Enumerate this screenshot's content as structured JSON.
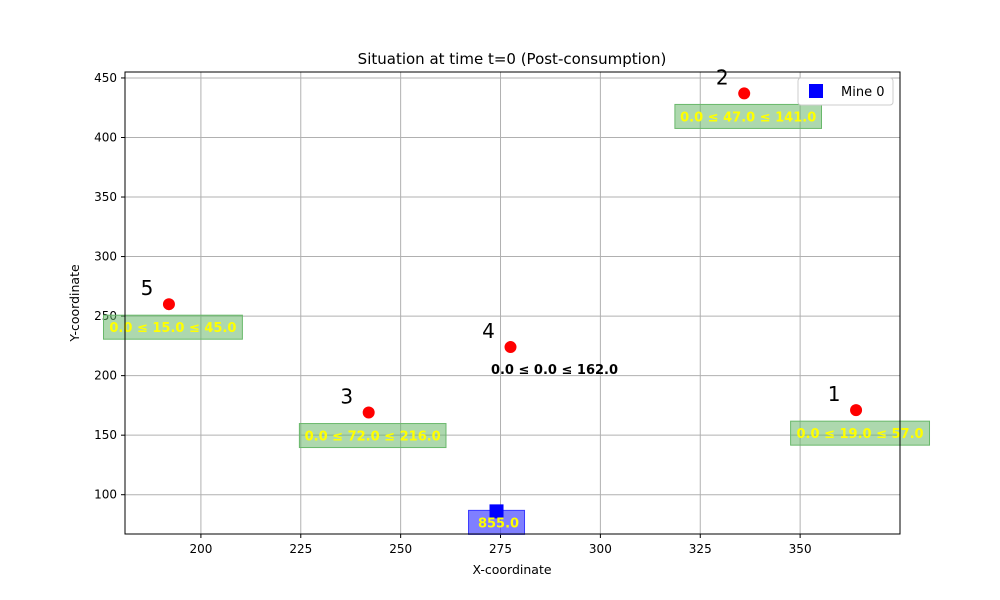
{
  "chart_data": {
    "type": "scatter",
    "title": "Situation at time t=0 (Post-consumption)",
    "xlabel": "X-coordinate",
    "ylabel": "Y-coordinate",
    "xlim": [
      181,
      375
    ],
    "ylim": [
      67,
      455
    ],
    "xticks": [
      200,
      225,
      250,
      275,
      300,
      325,
      350
    ],
    "yticks": [
      100,
      150,
      200,
      250,
      300,
      350,
      400,
      450
    ],
    "grid": true,
    "legend": {
      "position": "top-right",
      "entries": [
        {
          "label": "Mine 0",
          "marker": "square",
          "color": "#0000ff"
        }
      ]
    },
    "customers": [
      {
        "id": "1",
        "x": 364,
        "y": 171,
        "label": "0.0 ≤ 19.0 ≤ 57.0",
        "boxed": true
      },
      {
        "id": "2",
        "x": 336,
        "y": 437,
        "label": "0.0 ≤ 47.0 ≤ 141.0",
        "boxed": true
      },
      {
        "id": "3",
        "x": 242,
        "y": 169,
        "label": "0.0 ≤ 72.0 ≤ 216.0",
        "boxed": true
      },
      {
        "id": "4",
        "x": 277.5,
        "y": 224,
        "label": "0.0 ≤ 0.0 ≤ 162.0",
        "boxed": false
      },
      {
        "id": "5",
        "x": 192,
        "y": 260,
        "label": "0.0 ≤ 15.0 ≤ 45.0",
        "boxed": true
      }
    ],
    "mines": [
      {
        "name": "Mine 0",
        "x": 274,
        "y": 86,
        "label": "855.0"
      }
    ],
    "colors": {
      "customer": "#ff0000",
      "mine": "#0000ff",
      "customer_box": "#69b86b",
      "customer_box_text": "#ffff00",
      "mine_box": "#3a3aff",
      "mine_box_text": "#ffff00",
      "plain_label_text": "#000000",
      "grid": "#b0b0b0"
    }
  }
}
